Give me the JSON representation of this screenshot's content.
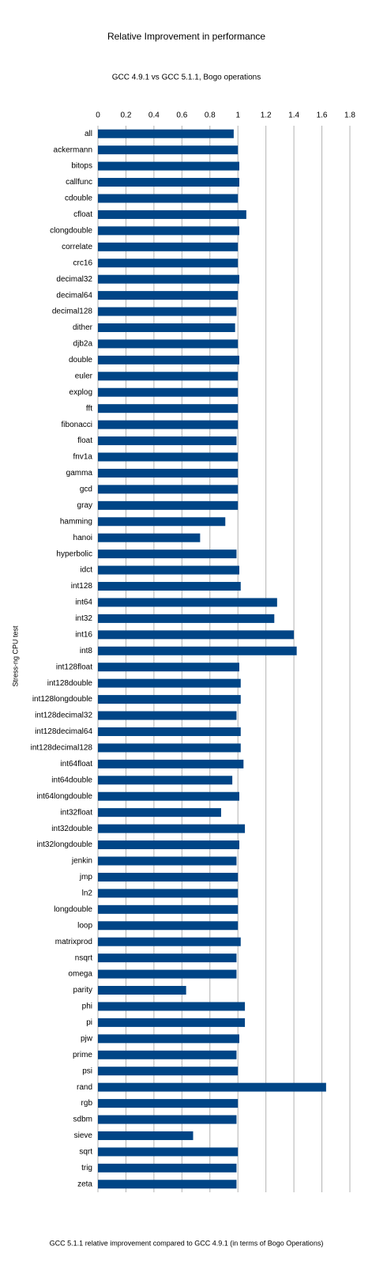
{
  "chart_data": {
    "type": "bar",
    "orientation": "horizontal",
    "title": "Relative Improvement in performance",
    "subtitle": "GCC 4.9.1 vs GCC 5.1.1, Bogo operations",
    "y_label": "Stress-ng CPU test",
    "x_label": "GCC 5.1.1 relative improvement compared to GCC 4.9.1 (in terms of Bogo Operations)",
    "categories": [
      "all",
      "ackermann",
      "bitops",
      "callfunc",
      "cdouble",
      "cfloat",
      "clongdouble",
      "correlate",
      "crc16",
      "decimal32",
      "decimal64",
      "decimal128",
      "dither",
      "djb2a",
      "double",
      "euler",
      "explog",
      "fft",
      "fibonacci",
      "float",
      "fnv1a",
      "gamma",
      "gcd",
      "gray",
      "hamming",
      "hanoi",
      "hyperbolic",
      "idct",
      "int128",
      "int64",
      "int32",
      "int16",
      "int8",
      "int128float",
      "int128double",
      "int128longdouble",
      "int128decimal32",
      "int128decimal64",
      "int128decimal128",
      "int64float",
      "int64double",
      "int64longdouble",
      "int32float",
      "int32double",
      "int32longdouble",
      "jenkin",
      "jmp",
      "ln2",
      "longdouble",
      "loop",
      "matrixprod",
      "nsqrt",
      "omega",
      "parity",
      "phi",
      "pi",
      "pjw",
      "prime",
      "psi",
      "rand",
      "rgb",
      "sdbm",
      "sieve",
      "sqrt",
      "trig",
      "zeta"
    ],
    "values": [
      0.97,
      1.0,
      1.01,
      1.01,
      1.0,
      1.06,
      1.01,
      1.0,
      1.0,
      1.01,
      1.0,
      0.99,
      0.98,
      1.0,
      1.01,
      1.0,
      1.0,
      1.0,
      1.0,
      0.99,
      1.0,
      1.0,
      1.0,
      1.0,
      0.91,
      0.73,
      0.99,
      1.01,
      1.02,
      1.28,
      1.26,
      1.4,
      1.42,
      1.01,
      1.02,
      1.02,
      0.99,
      1.02,
      1.02,
      1.04,
      0.96,
      1.01,
      0.88,
      1.05,
      1.01,
      0.99,
      1.0,
      1.0,
      1.0,
      1.0,
      1.02,
      0.99,
      0.99,
      0.63,
      1.05,
      1.05,
      1.01,
      0.99,
      1.0,
      1.63,
      1.0,
      0.99,
      0.68,
      1.0,
      0.99,
      0.99
    ],
    "color": "#004586",
    "xlim": [
      0,
      1.8
    ],
    "xticks": [
      0,
      0.2,
      0.4,
      0.6,
      0.8,
      1,
      1.2,
      1.4,
      1.6,
      1.8
    ],
    "grid": true
  }
}
